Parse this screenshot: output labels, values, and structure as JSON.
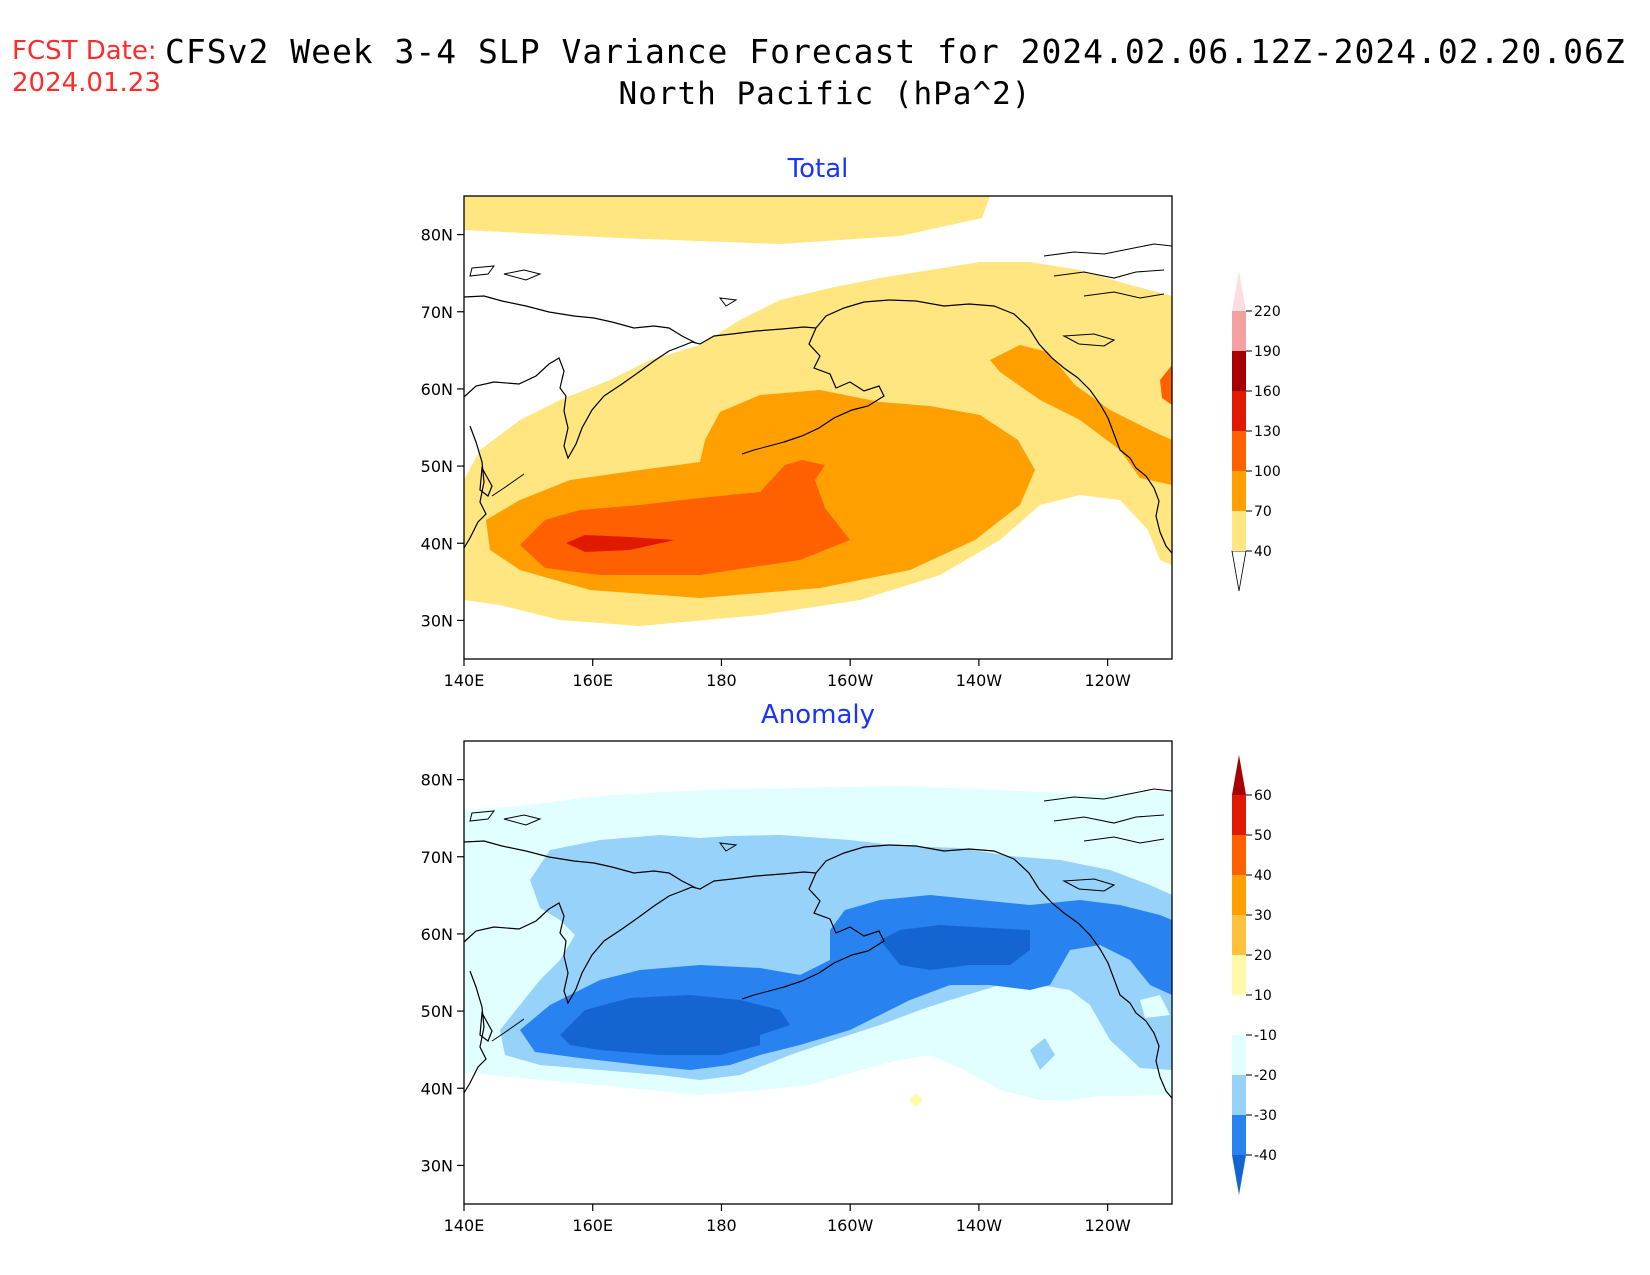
{
  "header": {
    "fcst_label": "FCST Date:",
    "fcst_date": "2024.01.23",
    "title_line1": "CFSv2 Week 3-4 SLP Variance Forecast for 2024.02.06.12Z-2024.02.20.06Z",
    "title_line2": "North Pacific (hPa^2)"
  },
  "map": {
    "lon_ticks": [
      "140E",
      "160E",
      "180",
      "160W",
      "140W",
      "120W"
    ],
    "lat_ticks": [
      "80N",
      "70N",
      "60N",
      "50N",
      "40N",
      "30N"
    ],
    "lon_range_deg_east": [
      140,
      250
    ],
    "lat_range_deg": [
      25,
      85
    ]
  },
  "panels": [
    {
      "title": "Total",
      "colorbar": {
        "labels": [
          "40",
          "70",
          "100",
          "130",
          "160",
          "190",
          "220"
        ],
        "colors": [
          "#ffe680",
          "#ffa000",
          "#ff6000",
          "#e01a00",
          "#a80000",
          "#f2a0a0",
          "#fcdede"
        ]
      }
    },
    {
      "title": "Anomaly",
      "colorbar": {
        "labels": [
          "-40",
          "-30",
          "-20",
          "-10",
          "10",
          "20",
          "30",
          "40",
          "50",
          "60"
        ],
        "colors": [
          "#1464d2",
          "#2882f0",
          "#96d2fa",
          "#e1ffff",
          "#ffffff",
          "#fffaaa",
          "#ffc03c",
          "#ffa000",
          "#ff6000",
          "#e01a00",
          "#a80000"
        ]
      }
    }
  ]
}
